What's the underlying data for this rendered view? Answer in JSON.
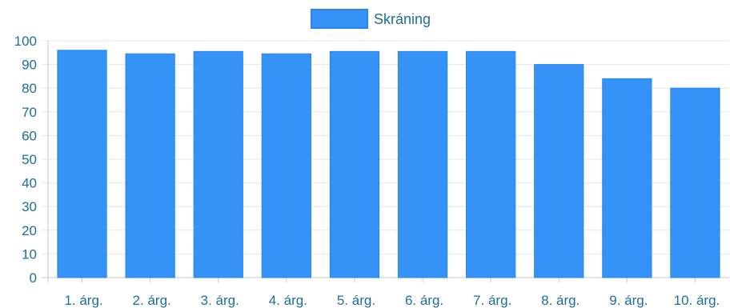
{
  "chart_data": {
    "type": "bar",
    "categories": [
      "1. árg.",
      "2. árg.",
      "3. árg.",
      "4. árg.",
      "5. árg.",
      "6. árg.",
      "7. árg.",
      "8. árg.",
      "9. árg.",
      "10. árg."
    ],
    "series": [
      {
        "name": "Skráning",
        "values": [
          96,
          94.5,
          95.5,
          94.5,
          95.5,
          95.5,
          95.5,
          90,
          84,
          80
        ]
      }
    ],
    "yticks": [
      "0",
      "10",
      "20",
      "30",
      "40",
      "50",
      "60",
      "70",
      "80",
      "90",
      "100"
    ],
    "ylim": [
      0,
      100
    ],
    "grid": true,
    "legend_position": "top-center",
    "colors": {
      "bar_fill": "#3592f7",
      "bar_stroke": "#2b86ea",
      "tick_text": "#1d6f98",
      "grid": "#e6e6e6",
      "axis": "#c9c9c9"
    }
  }
}
